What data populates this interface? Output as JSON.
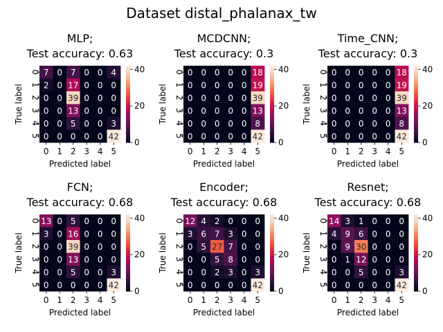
{
  "title": "Dataset distal_phalanax_tw",
  "chart_data": [
    {
      "type": "heatmap",
      "title_line1": "MLP;",
      "title_line2": "Test accuracy: 0.63",
      "xlabel": "Predicted label",
      "ylabel": "True label",
      "x_ticks": [
        "0",
        "1",
        "2",
        "3",
        "4",
        "5"
      ],
      "y_ticks": [
        "0",
        "1",
        "2",
        "3",
        "4",
        "5"
      ],
      "colorbar_ticks": [
        0,
        20,
        40
      ],
      "vmin": 0,
      "vmax": 42,
      "matrix": [
        [
          7,
          0,
          7,
          0,
          0,
          4
        ],
        [
          2,
          0,
          17,
          0,
          0,
          0
        ],
        [
          0,
          0,
          39,
          0,
          0,
          0
        ],
        [
          0,
          0,
          13,
          0,
          0,
          0
        ],
        [
          0,
          0,
          5,
          0,
          0,
          3
        ],
        [
          0,
          0,
          0,
          0,
          0,
          42
        ]
      ]
    },
    {
      "type": "heatmap",
      "title_line1": "MCDCNN;",
      "title_line2": "Test accuracy: 0.3",
      "xlabel": "Predicted label",
      "ylabel": "True label",
      "x_ticks": [
        "0",
        "1",
        "2",
        "3",
        "4",
        "5"
      ],
      "y_ticks": [
        "0",
        "1",
        "2",
        "3",
        "4",
        "5"
      ],
      "colorbar_ticks": [
        0,
        20,
        40
      ],
      "vmin": 0,
      "vmax": 42,
      "matrix": [
        [
          0,
          0,
          0,
          0,
          0,
          18
        ],
        [
          0,
          0,
          0,
          0,
          0,
          19
        ],
        [
          0,
          0,
          0,
          0,
          0,
          39
        ],
        [
          0,
          0,
          0,
          0,
          0,
          13
        ],
        [
          0,
          0,
          0,
          0,
          0,
          8
        ],
        [
          0,
          0,
          0,
          0,
          0,
          42
        ]
      ]
    },
    {
      "type": "heatmap",
      "title_line1": "Time_CNN;",
      "title_line2": "Test accuracy: 0.3",
      "xlabel": "Predicted label",
      "ylabel": "True label",
      "x_ticks": [
        "0",
        "1",
        "2",
        "3",
        "4",
        "5"
      ],
      "y_ticks": [
        "0",
        "1",
        "2",
        "3",
        "4",
        "5"
      ],
      "colorbar_ticks": [
        0,
        20,
        40
      ],
      "vmin": 0,
      "vmax": 42,
      "matrix": [
        [
          0,
          0,
          0,
          0,
          0,
          18
        ],
        [
          0,
          0,
          0,
          0,
          0,
          19
        ],
        [
          0,
          0,
          0,
          0,
          0,
          39
        ],
        [
          0,
          0,
          0,
          0,
          0,
          13
        ],
        [
          0,
          0,
          0,
          0,
          0,
          8
        ],
        [
          0,
          0,
          0,
          0,
          0,
          42
        ]
      ]
    },
    {
      "type": "heatmap",
      "title_line1": "FCN;",
      "title_line2": "Test accuracy: 0.68",
      "xlabel": "Predicted label",
      "ylabel": "True label",
      "x_ticks": [
        "0",
        "1",
        "2",
        "3",
        "4",
        "5"
      ],
      "y_ticks": [
        "0",
        "1",
        "2",
        "3",
        "4",
        "5"
      ],
      "colorbar_ticks": [
        0,
        20,
        40
      ],
      "vmin": 0,
      "vmax": 42,
      "matrix": [
        [
          13,
          0,
          5,
          0,
          0,
          0
        ],
        [
          3,
          0,
          16,
          0,
          0,
          0
        ],
        [
          0,
          0,
          39,
          0,
          0,
          0
        ],
        [
          0,
          0,
          13,
          0,
          0,
          0
        ],
        [
          0,
          0,
          5,
          0,
          0,
          3
        ],
        [
          0,
          0,
          0,
          0,
          0,
          42
        ]
      ]
    },
    {
      "type": "heatmap",
      "title_line1": "Encoder;",
      "title_line2": "Test accuracy: 0.68",
      "xlabel": "Predicted label",
      "ylabel": "True label",
      "x_ticks": [
        "0",
        "1",
        "2",
        "3",
        "4",
        "5"
      ],
      "y_ticks": [
        "0",
        "1",
        "2",
        "3",
        "4",
        "5"
      ],
      "colorbar_ticks": [
        0,
        20,
        40
      ],
      "vmin": 0,
      "vmax": 42,
      "matrix": [
        [
          12,
          4,
          2,
          0,
          0,
          0
        ],
        [
          3,
          6,
          7,
          3,
          0,
          0
        ],
        [
          0,
          5,
          27,
          7,
          0,
          0
        ],
        [
          0,
          0,
          5,
          8,
          0,
          0
        ],
        [
          0,
          0,
          2,
          3,
          0,
          3
        ],
        [
          0,
          0,
          0,
          0,
          0,
          42
        ]
      ]
    },
    {
      "type": "heatmap",
      "title_line1": "Resnet;",
      "title_line2": "Test accuracy: 0.68",
      "xlabel": "Predicted label",
      "ylabel": "True label",
      "x_ticks": [
        "0",
        "1",
        "2",
        "3",
        "4",
        "5"
      ],
      "y_ticks": [
        "0",
        "1",
        "2",
        "3",
        "4",
        "5"
      ],
      "colorbar_ticks": [
        0,
        20,
        40
      ],
      "vmin": 0,
      "vmax": 42,
      "matrix": [
        [
          14,
          3,
          1,
          0,
          0,
          0
        ],
        [
          4,
          9,
          6,
          0,
          0,
          0
        ],
        [
          0,
          9,
          30,
          0,
          0,
          0
        ],
        [
          0,
          1,
          12,
          0,
          0,
          0
        ],
        [
          0,
          0,
          5,
          0,
          0,
          3
        ],
        [
          0,
          0,
          0,
          0,
          0,
          42
        ]
      ]
    }
  ]
}
